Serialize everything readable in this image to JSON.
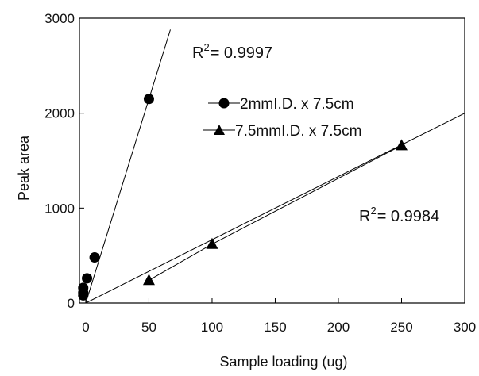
{
  "chart_data": {
    "type": "scatter",
    "xlabel": "Sample loading (ug)",
    "ylabel": "Peak area",
    "xlim": [
      -5,
      300
    ],
    "ylim": [
      0,
      3000
    ],
    "x_ticks": [
      0,
      50,
      100,
      150,
      200,
      250,
      300
    ],
    "y_ticks": [
      0,
      1000,
      2000,
      3000
    ],
    "grid": false,
    "legend_position": "center-right",
    "series": [
      {
        "name": "2mmI.D. x 7.5cm",
        "marker": "circle",
        "color": "#000000",
        "points": [
          [
            -2,
            80
          ],
          [
            -2,
            110
          ],
          [
            -2,
            160
          ],
          [
            1,
            260
          ],
          [
            7,
            480
          ],
          [
            50,
            2150
          ]
        ],
        "fit": {
          "x_start": 0,
          "y_start": 0,
          "x_end": 67,
          "y_end": 2880
        },
        "r2_label": "R",
        "r2_sup": "2",
        "r2_value": "= 0.9997"
      },
      {
        "name": "7.5mmI.D. x 7.5cm",
        "marker": "triangle",
        "color": "#000000",
        "points": [
          [
            50,
            240
          ],
          [
            100,
            620
          ],
          [
            250,
            1660
          ]
        ],
        "fit": {
          "x_start": 0,
          "y_start": 0,
          "x_end": 300,
          "y_end": 2000
        },
        "r2_label": "R",
        "r2_sup": "2",
        "r2_value": "= 0.9984"
      }
    ]
  }
}
